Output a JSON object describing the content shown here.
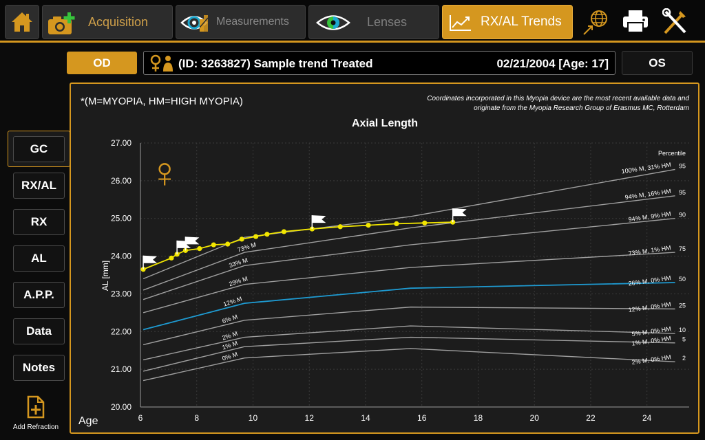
{
  "toolbar": {
    "acquisition_label": "Acquisition",
    "measurements_label": "Measurements",
    "lenses_label": "Lenses",
    "trends_label": "RX/AL Trends",
    "accent_color": "#d5971f"
  },
  "patient": {
    "od_label": "OD",
    "os_label": "OS",
    "name": "(ID: 3263827) Sample trend Treated",
    "dob_age": "02/21/2004 [Age: 17]"
  },
  "sidebar": {
    "items": [
      {
        "label": "GC"
      },
      {
        "label": "RX/AL"
      },
      {
        "label": "RX"
      },
      {
        "label": "AL"
      },
      {
        "label": "A.P.P."
      },
      {
        "label": "Data"
      },
      {
        "label": "Notes"
      }
    ],
    "add_refraction_label": "Add Refraction"
  },
  "chart_data": {
    "type": "line",
    "title": "Axial Length",
    "legend_note": "*(M=MYOPIA, HM=HIGH MYOPIA)",
    "source_note": [
      "Coordinates incorporated in this Myopia device are the most recent available data and",
      "originate from the Myopia Research Group of Erasmus MC, Rotterdam"
    ],
    "xlabel": "Age",
    "ylabel": "AL [mm]",
    "xlim": [
      6,
      25.5
    ],
    "ylim": [
      20.0,
      27.0
    ],
    "xticks": [
      6,
      8,
      10,
      12,
      14,
      16,
      18,
      20,
      22,
      24
    ],
    "yticks": [
      "20.00",
      "21.00",
      "22.00",
      "23.00",
      "24.00",
      "25.00",
      "26.00",
      "27.00"
    ],
    "percentile_header": "Percentile",
    "percentile_curves": [
      {
        "label": "100% M, 31% HM",
        "percentile": "95",
        "points": [
          [
            6.1,
            23.4
          ],
          [
            9.7,
            24.5
          ],
          [
            15.6,
            25.05
          ],
          [
            25,
            26.3
          ]
        ],
        "curve_label": "",
        "curve_label_x": 0
      },
      {
        "label": "94% M, 16% HM",
        "percentile": "95",
        "points": [
          [
            6.1,
            23.1
          ],
          [
            9.7,
            24.1
          ],
          [
            15.6,
            24.75
          ],
          [
            25,
            25.6
          ]
        ],
        "curve_label": "73% M",
        "curve_label_x": 9.8
      },
      {
        "label": "94% M, 9% HM",
        "percentile": "90",
        "points": [
          [
            6.1,
            22.85
          ],
          [
            9.7,
            23.75
          ],
          [
            15.6,
            24.3
          ],
          [
            25,
            25.0
          ]
        ],
        "curve_label": "33% M",
        "curve_label_x": 9.5
      },
      {
        "label": "73% M, 1% HM",
        "percentile": "75",
        "points": [
          [
            6.1,
            22.5
          ],
          [
            9.7,
            23.25
          ],
          [
            15.6,
            23.7
          ],
          [
            25,
            24.1
          ]
        ],
        "curve_label": "29% M",
        "curve_label_x": 9.5
      },
      {
        "label": "26% M, 0% HM",
        "percentile": "50",
        "points": [
          [
            6.1,
            22.05
          ],
          [
            9.7,
            22.75
          ],
          [
            15.6,
            23.15
          ],
          [
            25,
            23.3
          ]
        ],
        "curve_label": "12% M",
        "curve_label_x": 9.3,
        "highlight": true
      },
      {
        "label": "12% M, 0% HM",
        "percentile": "25",
        "points": [
          [
            6.1,
            21.65
          ],
          [
            9.7,
            22.3
          ],
          [
            15.6,
            22.65
          ],
          [
            25,
            22.6
          ]
        ],
        "curve_label": "6% M",
        "curve_label_x": 9.2
      },
      {
        "label": "5% M, 0% HM",
        "percentile": "10",
        "points": [
          [
            6.1,
            21.25
          ],
          [
            9.7,
            21.85
          ],
          [
            15.6,
            22.15
          ],
          [
            25,
            21.95
          ]
        ],
        "curve_label": "2% M",
        "curve_label_x": 9.2
      },
      {
        "label": "1% M, 0% HM",
        "percentile": "5",
        "points": [
          [
            6.1,
            20.95
          ],
          [
            9.7,
            21.6
          ],
          [
            15.6,
            21.85
          ],
          [
            25,
            21.7
          ]
        ],
        "curve_label": "1% M",
        "curve_label_x": 9.2
      },
      {
        "label": "2% M, 0% HM",
        "percentile": "2",
        "points": [
          [
            6.1,
            20.7
          ],
          [
            9.7,
            21.3
          ],
          [
            15.6,
            21.55
          ],
          [
            25,
            21.2
          ]
        ],
        "curve_label": "0% M",
        "curve_label_x": 9.2
      }
    ],
    "measurements": {
      "color": "#f2e600",
      "points": [
        [
          6.1,
          23.65
        ],
        [
          7.1,
          23.95
        ],
        [
          7.3,
          24.05
        ],
        [
          7.6,
          24.15
        ],
        [
          8.1,
          24.2
        ],
        [
          8.6,
          24.3
        ],
        [
          9.1,
          24.32
        ],
        [
          9.6,
          24.45
        ],
        [
          10.1,
          24.52
        ],
        [
          10.5,
          24.58
        ],
        [
          11.1,
          24.65
        ],
        [
          12.1,
          24.72
        ],
        [
          13.1,
          24.78
        ],
        [
          14.1,
          24.82
        ],
        [
          15.1,
          24.86
        ],
        [
          16.1,
          24.88
        ],
        [
          17.1,
          24.9
        ]
      ],
      "treatment_flags": [
        6.1,
        7.3,
        7.6,
        12.1,
        17.1
      ]
    },
    "female_symbol": "♀",
    "grid": true
  }
}
